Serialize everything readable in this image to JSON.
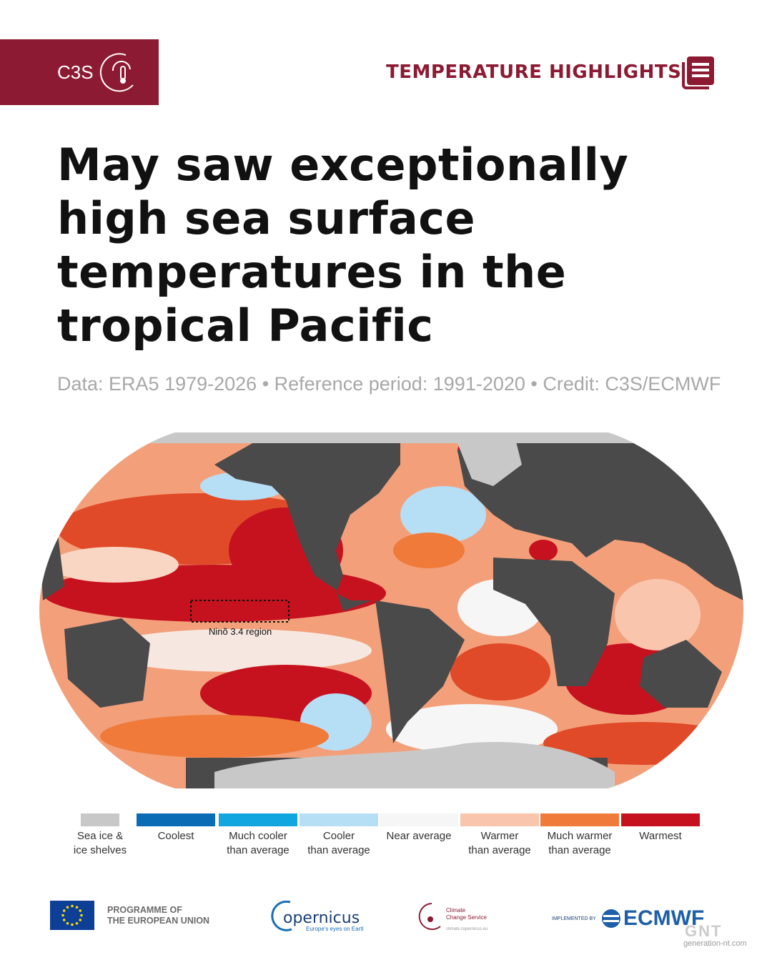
{
  "header": {
    "badge": "C3S",
    "section": "TEMPERATURE HIGHLIGHTS"
  },
  "title_lines": [
    "May saw exceptionally",
    "high sea surface",
    "temperatures in the",
    "tropical Pacific"
  ],
  "subtitle": "Data: ERA5 1979-2026 • Reference period: 1991-2020 • Credit: C3S/ECMWF",
  "map": {
    "annotation": "Ninõ 3.4 region"
  },
  "legend": [
    {
      "lines": [
        "Sea ice &",
        "ice shelves"
      ],
      "color": "#c8c8c8"
    },
    {
      "lines": [
        "Coolest"
      ],
      "color": "#0a6cb5"
    },
    {
      "lines": [
        "Much cooler",
        "than average"
      ],
      "color": "#12a6e0"
    },
    {
      "lines": [
        "Cooler",
        "than average"
      ],
      "color": "#b6def5"
    },
    {
      "lines": [
        "Near average"
      ],
      "color": "#f6f6f6"
    },
    {
      "lines": [
        "Warmer",
        "than average"
      ],
      "color": "#f9c6ad"
    },
    {
      "lines": [
        "Much warmer",
        "than average"
      ],
      "color": "#f07a3a"
    },
    {
      "lines": [
        "Warmest"
      ],
      "color": "#c6111e"
    }
  ],
  "footer": {
    "eu": [
      "PROGRAMME OF",
      "THE EUROPEAN UNION"
    ],
    "copernicus": "opernicus",
    "copernicus_tagline": "Europe's eyes on Earth",
    "c3s": [
      "Climate",
      "Change Service"
    ],
    "c3s_url": "climate.copernicus.eu",
    "implemented": "IMPLEMENTED BY",
    "ecmwf": "ECMWF"
  },
  "watermark": {
    "logo": "GNT",
    "site": "generation-nt.com"
  }
}
